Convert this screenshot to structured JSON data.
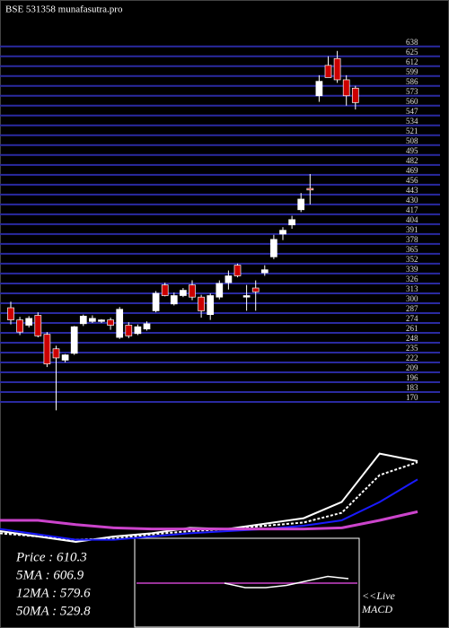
{
  "chart_data": {
    "type": "candlestick",
    "title": "BSE 531358  munafasutra.pro",
    "ylim": [
      150,
      640
    ],
    "yticks": [
      638,
      625,
      612,
      599,
      586,
      573,
      560,
      547,
      534,
      521,
      508,
      495,
      482,
      469,
      456,
      443,
      430,
      417,
      404,
      391,
      378,
      365,
      352,
      339,
      326,
      313,
      300,
      287,
      274,
      261,
      248,
      235,
      222,
      209,
      196,
      183,
      170
    ],
    "grid": true,
    "up_color": "#ffffff",
    "down_color": "#cc0000",
    "candles": [
      [
        294,
        302,
        272,
        278
      ],
      [
        278,
        282,
        258,
        262
      ],
      [
        271,
        283,
        268,
        280
      ],
      [
        284,
        288,
        255,
        257
      ],
      [
        259,
        262,
        216,
        220
      ],
      [
        240,
        244,
        159,
        228
      ],
      [
        225,
        233,
        222,
        232
      ],
      [
        234,
        270,
        232,
        269
      ],
      [
        273,
        285,
        270,
        283
      ],
      [
        276,
        284,
        274,
        280
      ],
      [
        276,
        279,
        274,
        278
      ],
      [
        278,
        281,
        265,
        271
      ],
      [
        255,
        295,
        253,
        292
      ],
      [
        271,
        275,
        254,
        257
      ],
      [
        260,
        272,
        258,
        269
      ],
      [
        266,
        276,
        264,
        273
      ],
      [
        290,
        316,
        288,
        313
      ],
      [
        324,
        327,
        309,
        310
      ],
      [
        299,
        314,
        297,
        310
      ],
      [
        310,
        320,
        308,
        317
      ],
      [
        324,
        330,
        304,
        308
      ],
      [
        308,
        311,
        281,
        290
      ],
      [
        285,
        313,
        278,
        310
      ],
      [
        308,
        330,
        305,
        326
      ],
      [
        327,
        343,
        318,
        336
      ],
      [
        350,
        352,
        334,
        336
      ],
      [
        308,
        324,
        290,
        310
      ],
      [
        320,
        330,
        290,
        315
      ],
      [
        340,
        350,
        336,
        344
      ],
      [
        361,
        390,
        358,
        384
      ],
      [
        391,
        400,
        383,
        396
      ],
      [
        403,
        415,
        398,
        410
      ],
      [
        423,
        445,
        420,
        437
      ],
      [
        451,
        470,
        430,
        449
      ],
      [
        573,
        600,
        565,
        592
      ],
      [
        613,
        625,
        598,
        597
      ],
      [
        622,
        632,
        590,
        594
      ],
      [
        594,
        600,
        560,
        573
      ],
      [
        583,
        586,
        555,
        564
      ]
    ],
    "ma_panel": {
      "ylim": [
        0,
        100
      ],
      "series": [
        {
          "color": "#ffffff",
          "dash": false,
          "values": [
            15,
            10,
            5,
            10,
            13,
            18,
            17,
            22,
            27,
            42,
            87,
            80
          ]
        },
        {
          "color": "#ffffff",
          "dash": true,
          "values": [
            13,
            10,
            7,
            8,
            12,
            15,
            17,
            20,
            23,
            32,
            67,
            79
          ]
        },
        {
          "color": "#1a1aff",
          "dash": false,
          "values": [
            17,
            12,
            7,
            7,
            10,
            13,
            15,
            17,
            20,
            25,
            42,
            63
          ]
        },
        {
          "color": "#cc44cc",
          "dash": false,
          "values": [
            25,
            25,
            21,
            18,
            17,
            17,
            17,
            17,
            17,
            18,
            25,
            33
          ]
        }
      ]
    },
    "legend": [
      "Price  : 610.3",
      "5MA  : 606.9",
      "12MA : 579.6",
      "50MA : 529.8"
    ],
    "macd": {
      "label": "<<Live",
      "name": "MACD",
      "ylim": [
        -1,
        1
      ],
      "signal": [
        0,
        0,
        0,
        0,
        0,
        0,
        0
      ],
      "line": [
        0,
        -0.2,
        -0.2,
        -0.1,
        0.1,
        0.3,
        0.2
      ]
    }
  }
}
